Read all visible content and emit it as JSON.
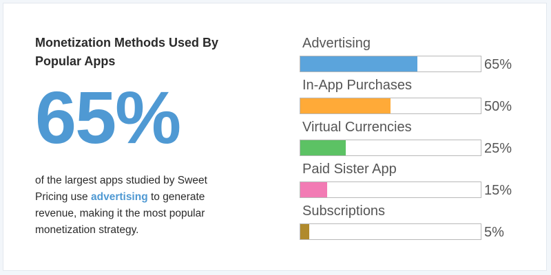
{
  "left_panel": {
    "title": "Monetization Methods Used By Popular Apps",
    "big_stat": "65%",
    "desc_before": "of the largest apps studied by Sweet Pricing use ",
    "desc_keyword": "advertising",
    "desc_after": " to generate revenue, making it the most popular monetization strategy."
  },
  "colors": {
    "accent": "#4f99d3"
  },
  "chart_data": {
    "type": "bar",
    "orientation": "horizontal",
    "xlim": [
      0,
      100
    ],
    "categories": [
      "Advertising",
      "In-App Purchases",
      "Virtual Currencies",
      "Paid Sister App",
      "Subscriptions"
    ],
    "values": [
      65,
      50,
      25,
      15,
      5
    ],
    "value_labels": [
      "65%",
      "50%",
      "25%",
      "15%",
      "5%"
    ],
    "colors": [
      "#5ba4dc",
      "#ffaa38",
      "#5cc264",
      "#f27bb4",
      "#b08a2c"
    ]
  }
}
